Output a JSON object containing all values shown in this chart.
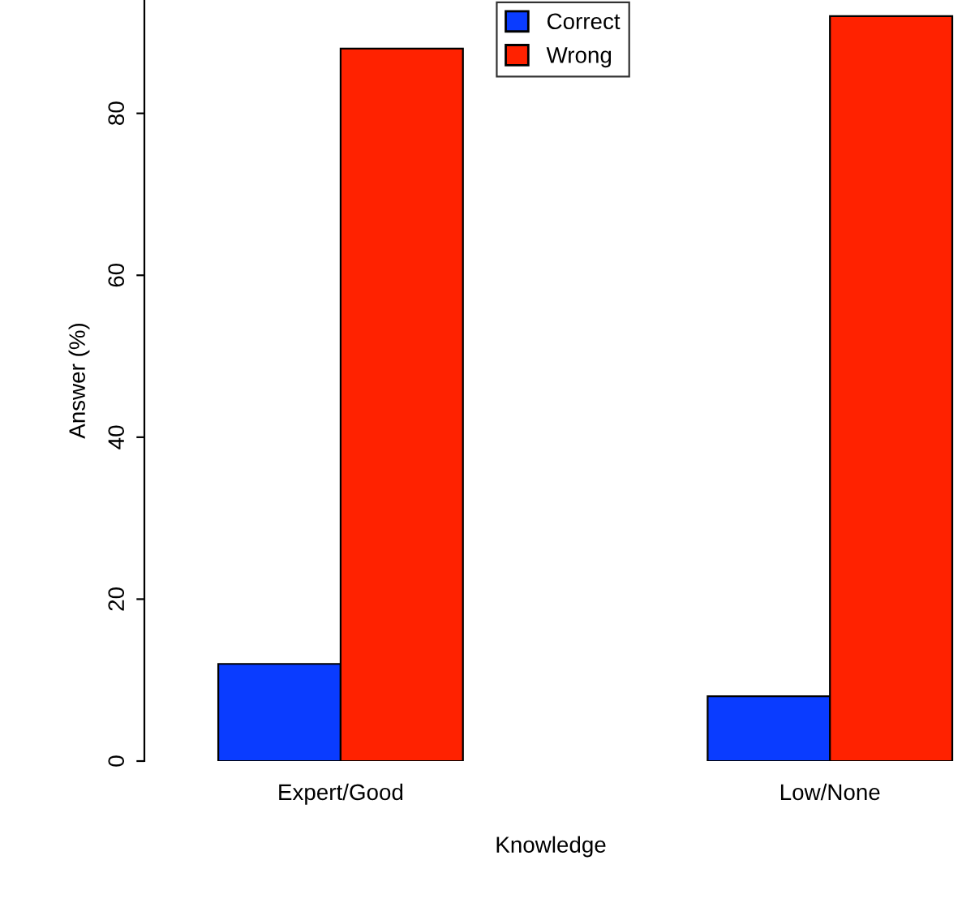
{
  "chart_data": {
    "type": "bar",
    "xlabel": "Knowledge",
    "ylabel": "Answer (%)",
    "categories": [
      "Expert/Good",
      "Low/None"
    ],
    "series": [
      {
        "name": "Correct",
        "color": "#0a3cff",
        "values": [
          12,
          8
        ]
      },
      {
        "name": "Wrong",
        "color": "#ff2200",
        "values": [
          88,
          92
        ]
      }
    ],
    "ylim": [
      0,
      94
    ],
    "yticks": [
      0,
      20,
      40,
      60,
      80
    ],
    "grid": false,
    "legend": "top"
  }
}
